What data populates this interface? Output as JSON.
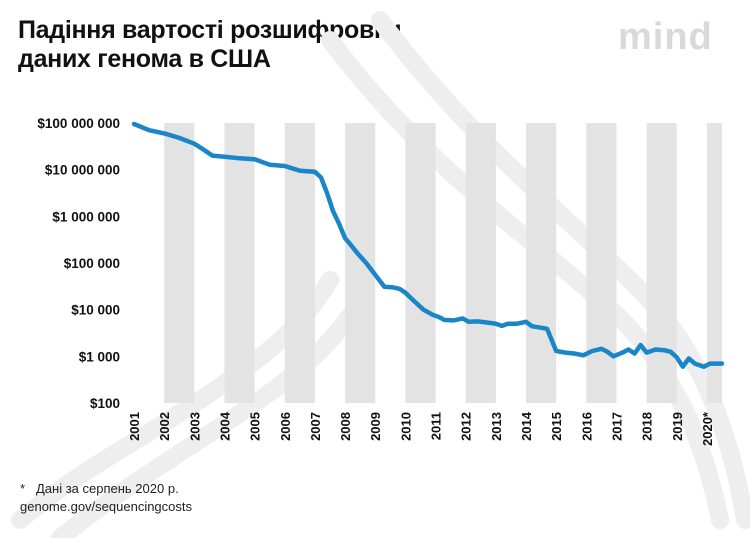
{
  "title_lines": [
    "Падіння вартості розшифровки",
    "даних генома в США"
  ],
  "logo": "mind",
  "footnote": {
    "mark": "*",
    "text": "Дані за серпень 2020 р.",
    "source": "genome.gov/sequencingcosts"
  },
  "colors": {
    "line": "#1a86c8",
    "band": "#e3e3e3",
    "text": "#111111",
    "logo": "#d9d9d9",
    "background_art": "#eeeeee"
  },
  "chart_data": {
    "type": "line",
    "title": "Падіння вартості розшифровки даних генома в США",
    "xlabel": "",
    "ylabel": "",
    "y_scale": "log",
    "ylim": [
      100,
      100000000
    ],
    "grid": false,
    "alternating_year_bands": true,
    "y_ticks": [
      {
        "value": 100000000,
        "label": "$100 000 000"
      },
      {
        "value": 10000000,
        "label": "$10 000 000"
      },
      {
        "value": 1000000,
        "label": "$1 000 000"
      },
      {
        "value": 100000,
        "label": "$100 000"
      },
      {
        "value": 10000,
        "label": "$10 000"
      },
      {
        "value": 1000,
        "label": "$1 000"
      },
      {
        "value": 100,
        "label": "$100"
      }
    ],
    "x_ticks": [
      "2001",
      "2002",
      "2003",
      "2004",
      "2005",
      "2006",
      "2007",
      "2008",
      "2009",
      "2010",
      "2011",
      "2012",
      "2013",
      "2014",
      "2015",
      "2016",
      "2017",
      "2018",
      "2019",
      "2020*"
    ],
    "series": [
      {
        "x": [
          2001.0,
          2001.5,
          2002.0,
          2002.5,
          2003.0,
          2003.3,
          2003.6,
          2004.0,
          2004.5,
          2005.0,
          2005.5,
          2006.0,
          2006.5,
          2006.8,
          2007.0,
          2007.2,
          2007.4,
          2007.6,
          2007.8,
          2008.0,
          2008.2,
          2008.4,
          2008.7,
          2009.0,
          2009.3,
          2009.6,
          2009.8,
          2010.0,
          2010.3,
          2010.6,
          2010.9,
          2011.1,
          2011.3,
          2011.6,
          2011.9,
          2012.1,
          2012.4,
          2012.7,
          2013.0,
          2013.2,
          2013.4,
          2013.7,
          2014.0,
          2014.2,
          2014.4,
          2014.7,
          2015.0,
          2015.3,
          2015.6,
          2015.9,
          2016.2,
          2016.5,
          2016.7,
          2016.9,
          2017.2,
          2017.4,
          2017.6,
          2017.8,
          2018.0,
          2018.3,
          2018.6,
          2018.8,
          2019.0,
          2019.2,
          2019.4,
          2019.6,
          2019.9,
          2020.1,
          2020.5
        ],
        "values": [
          95000000,
          70000000,
          60000000,
          48000000,
          36000000,
          27000000,
          20000000,
          19000000,
          17500000,
          16800000,
          12800000,
          12000000,
          9500000,
          9200000,
          9000000,
          6800000,
          3200000,
          1300000,
          700000,
          340000,
          240000,
          165000,
          100000,
          56000,
          31000,
          30000,
          28000,
          23000,
          15000,
          10000,
          7800,
          7000,
          6000,
          5900,
          6500,
          5500,
          5600,
          5300,
          5000,
          4500,
          5000,
          5000,
          5500,
          4400,
          4200,
          3900,
          1300,
          1200,
          1150,
          1050,
          1300,
          1450,
          1250,
          1000,
          1200,
          1400,
          1150,
          1750,
          1200,
          1400,
          1350,
          1250,
          950,
          600,
          900,
          700,
          600,
          700,
          700
        ]
      }
    ]
  }
}
